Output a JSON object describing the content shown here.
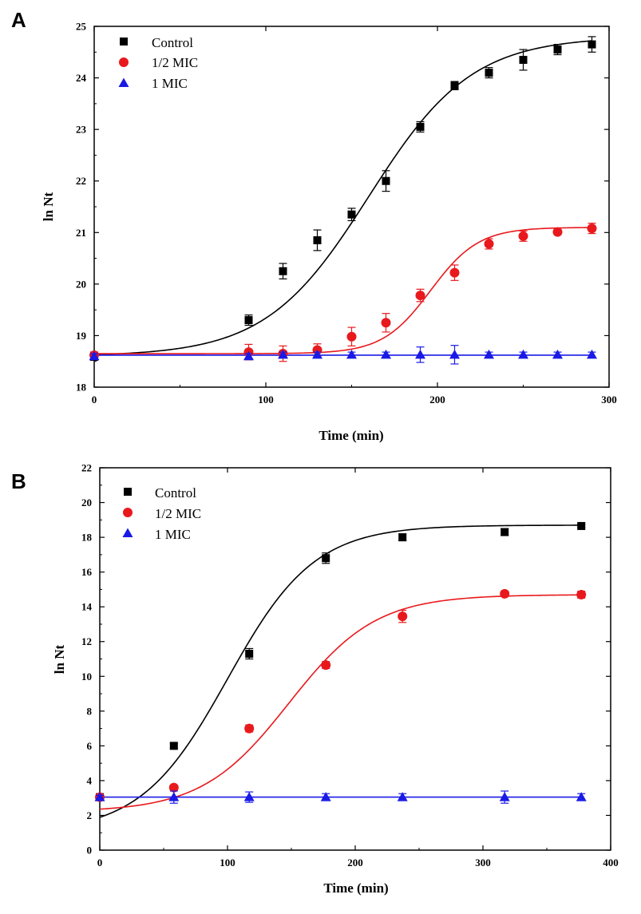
{
  "chart_data": [
    {
      "type": "scatter",
      "panel": "A",
      "title": "",
      "xlabel": "Time (min)",
      "ylabel": "ln Nt",
      "xlim": [
        0,
        300
      ],
      "ylim": [
        18,
        25
      ],
      "xticks": [
        0,
        100,
        200,
        300
      ],
      "yticks": [
        18,
        19,
        20,
        21,
        22,
        23,
        24,
        25
      ],
      "legend_position": "top-left",
      "series": [
        {
          "name": "Control",
          "color": "#000000",
          "marker": "square",
          "x": [
            0,
            90,
            110,
            130,
            150,
            170,
            190,
            210,
            230,
            250,
            270,
            290
          ],
          "y": [
            18.6,
            19.3,
            20.25,
            20.85,
            21.35,
            22.0,
            23.05,
            23.85,
            24.1,
            24.35,
            24.55,
            24.65
          ],
          "err": [
            0.08,
            0.1,
            0.15,
            0.2,
            0.12,
            0.2,
            0.1,
            0.08,
            0.1,
            0.2,
            0.1,
            0.15
          ],
          "fit": {
            "base": 18.6,
            "amp": 6.2,
            "mid": 160,
            "scale": 30
          }
        },
        {
          "name": "1/2 MIC",
          "color": "#e8191d",
          "marker": "circle",
          "x": [
            0,
            90,
            110,
            130,
            150,
            170,
            190,
            210,
            230,
            250,
            270,
            290
          ],
          "y": [
            18.62,
            18.68,
            18.65,
            18.72,
            18.98,
            19.25,
            19.78,
            20.22,
            20.78,
            20.93,
            21.01,
            21.08
          ],
          "err": [
            0.05,
            0.15,
            0.15,
            0.12,
            0.18,
            0.18,
            0.12,
            0.15,
            0.1,
            0.1,
            0.05,
            0.1
          ],
          "fit": {
            "base": 18.65,
            "amp": 2.45,
            "mid": 196,
            "scale": 14
          }
        },
        {
          "name": "1 MIC",
          "color": "#1a1ae6",
          "marker": "triangle",
          "x": [
            0,
            90,
            110,
            130,
            150,
            170,
            190,
            210,
            230,
            250,
            270,
            290
          ],
          "y": [
            18.6,
            18.6,
            18.63,
            18.63,
            18.63,
            18.63,
            18.63,
            18.63,
            18.63,
            18.63,
            18.63,
            18.63
          ],
          "err": [
            0.05,
            0.05,
            0.05,
            0.05,
            0.05,
            0.05,
            0.15,
            0.18,
            0.05,
            0.05,
            0.05,
            0.05
          ],
          "fit": {
            "base": 18.62,
            "amp": 0,
            "mid": 150,
            "scale": 30
          }
        }
      ]
    },
    {
      "type": "scatter",
      "panel": "B",
      "title": "",
      "xlabel": "Time (min)",
      "ylabel": "ln Nt",
      "xlim": [
        0,
        400
      ],
      "ylim": [
        0,
        22
      ],
      "xticks": [
        0,
        100,
        200,
        300,
        400
      ],
      "yticks": [
        0,
        2,
        4,
        6,
        8,
        10,
        12,
        14,
        16,
        18,
        20,
        22
      ],
      "legend_position": "top-left",
      "series": [
        {
          "name": "Control",
          "color": "#000000",
          "marker": "square",
          "x": [
            0,
            58,
            117,
            177,
            237,
            317,
            377
          ],
          "y": [
            3.05,
            6.0,
            11.3,
            16.8,
            18.0,
            18.3,
            18.65
          ],
          "err": [
            0.1,
            0.15,
            0.3,
            0.3,
            0.2,
            0.2,
            0.1
          ],
          "fit": {
            "base": 1.0,
            "amp": 17.7,
            "mid": 100,
            "scale": 34
          }
        },
        {
          "name": "1/2 MIC",
          "color": "#e8191d",
          "marker": "circle",
          "x": [
            0,
            58,
            117,
            177,
            237,
            317,
            377
          ],
          "y": [
            3.05,
            3.6,
            7.0,
            10.65,
            13.45,
            14.75,
            14.7
          ],
          "err": [
            0.1,
            0.1,
            0.2,
            0.2,
            0.35,
            0.15,
            0.2
          ],
          "fit": {
            "base": 2.2,
            "amp": 12.5,
            "mid": 148,
            "scale": 34
          }
        },
        {
          "name": "1 MIC",
          "color": "#1a1ae6",
          "marker": "triangle",
          "x": [
            0,
            58,
            117,
            177,
            237,
            317,
            377
          ],
          "y": [
            3.05,
            3.05,
            3.05,
            3.05,
            3.05,
            3.05,
            3.05
          ],
          "err": [
            0.1,
            0.35,
            0.3,
            0.2,
            0.2,
            0.35,
            0.2
          ],
          "fit": {
            "base": 3.05,
            "amp": 0,
            "mid": 150,
            "scale": 30
          }
        }
      ]
    }
  ]
}
